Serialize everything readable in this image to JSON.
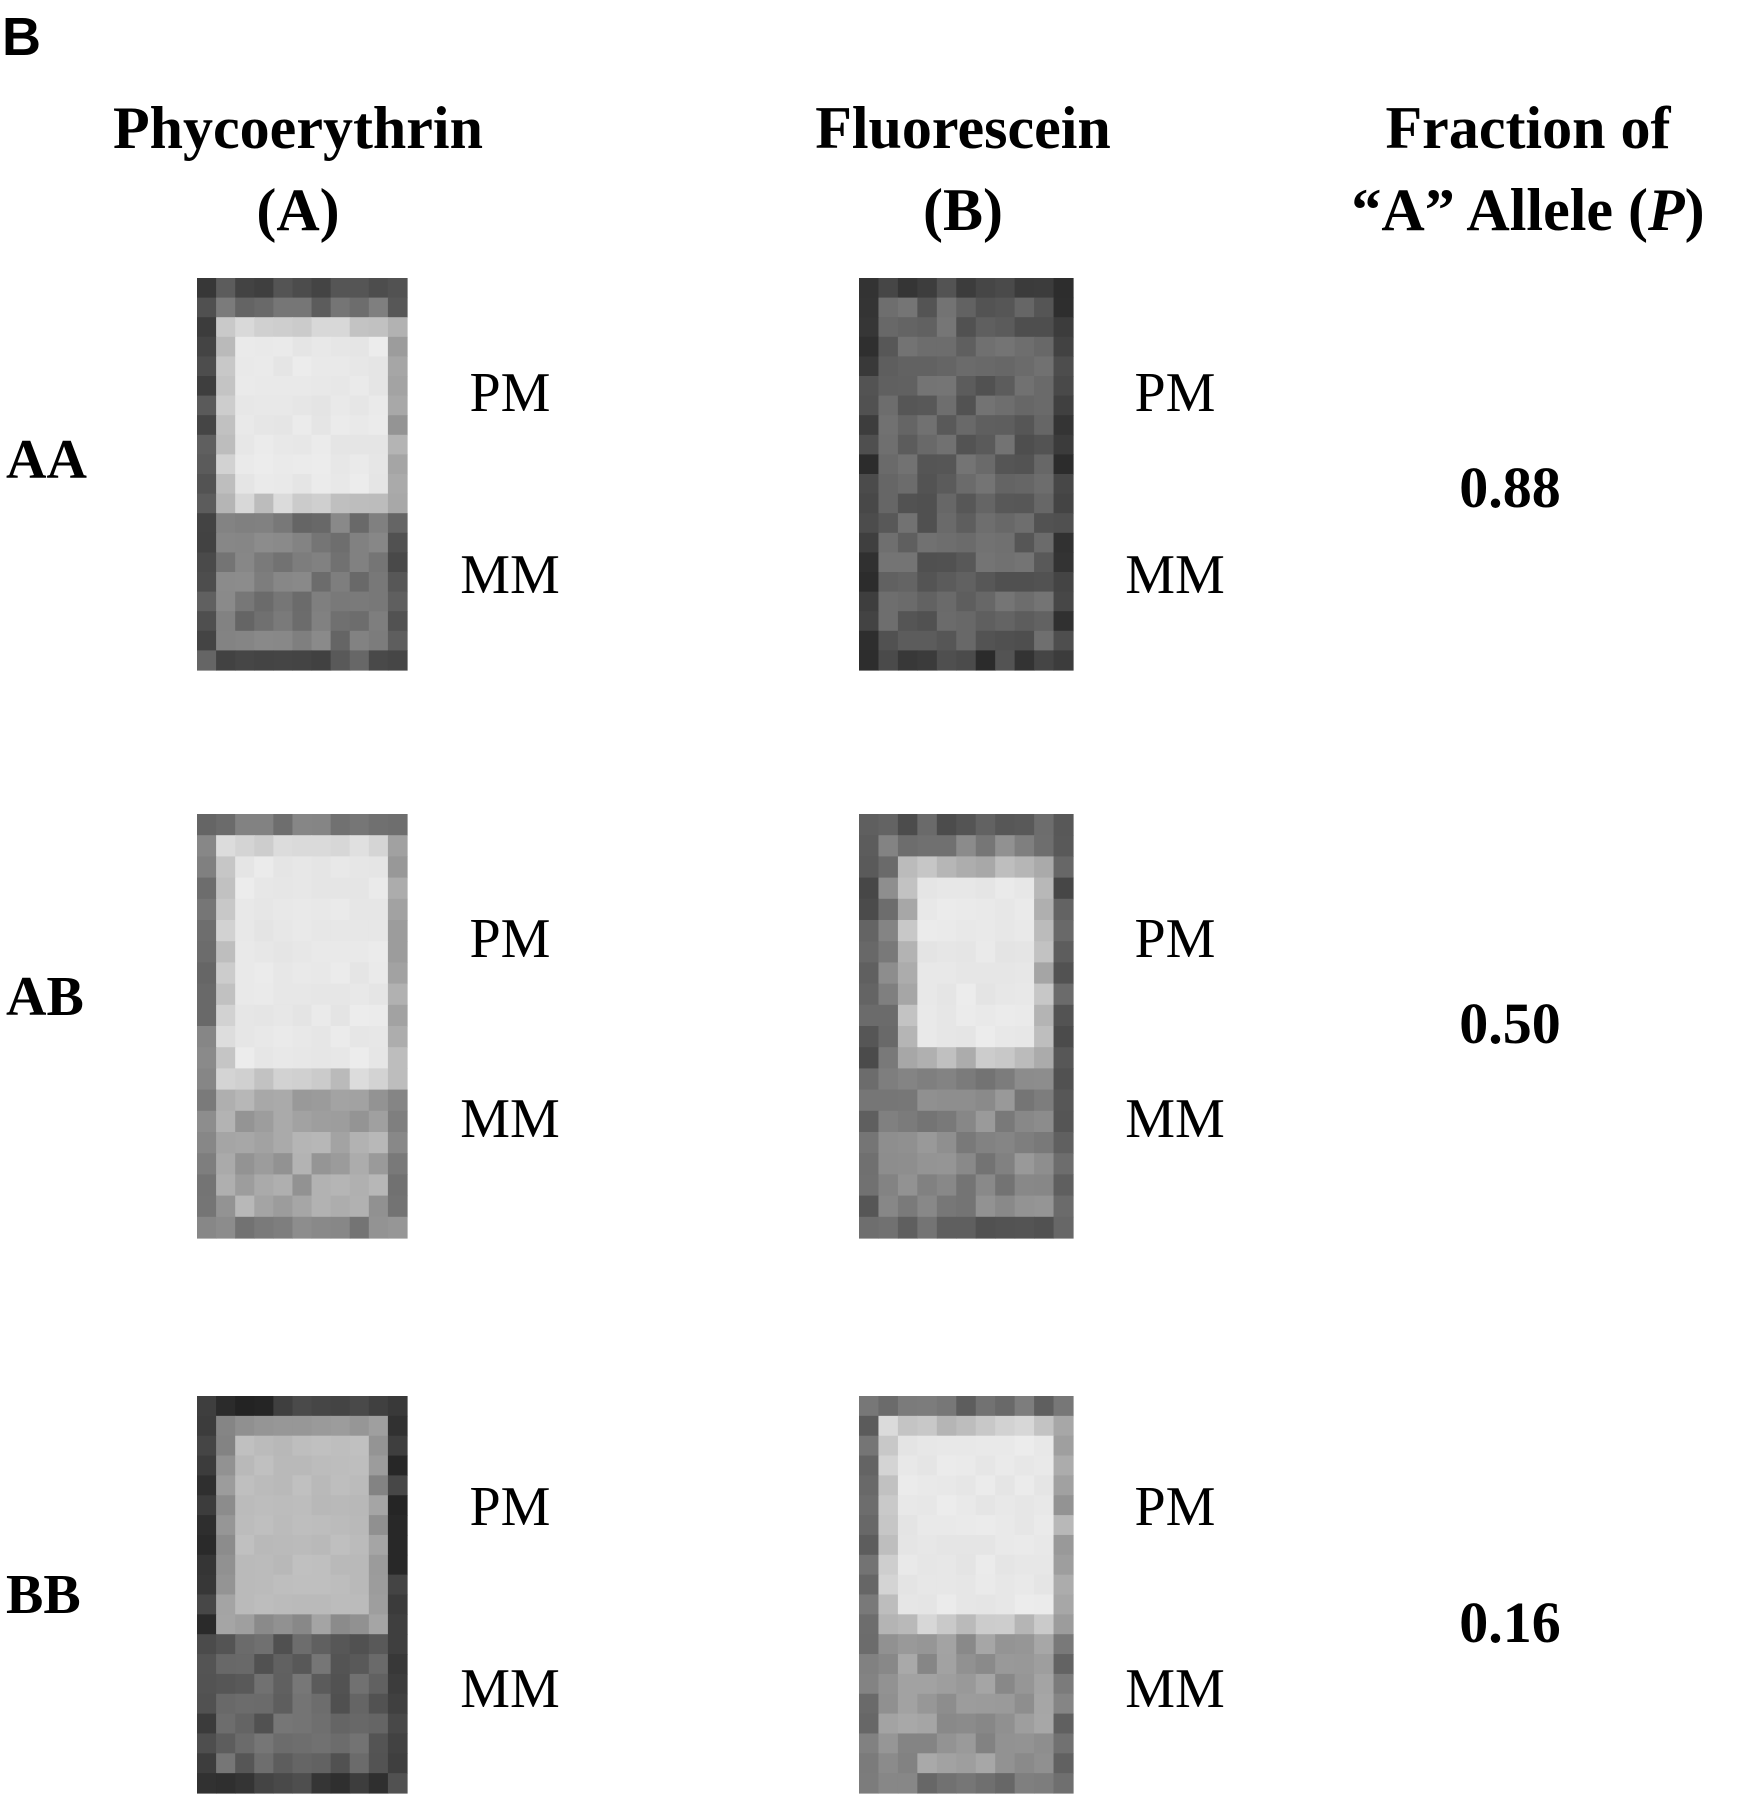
{
  "panel_label": "B",
  "columns": [
    {
      "title_lines": [
        "Phycoerythrin",
        "(A)"
      ]
    },
    {
      "title_lines": [
        "Fluorescein",
        "(B)"
      ]
    },
    {
      "title_line1": "Fraction of",
      "title_line2_pre": "“A” Allele (",
      "title_line2_italic": "P",
      "title_line2_post": ")"
    }
  ],
  "probe_labels": [
    "PM",
    "MM"
  ],
  "rows": [
    {
      "genotype": "AA",
      "fraction": "0.88"
    },
    {
      "genotype": "AB",
      "fraction": "0.50"
    },
    {
      "genotype": "BB",
      "fraction": "0.16"
    }
  ]
}
